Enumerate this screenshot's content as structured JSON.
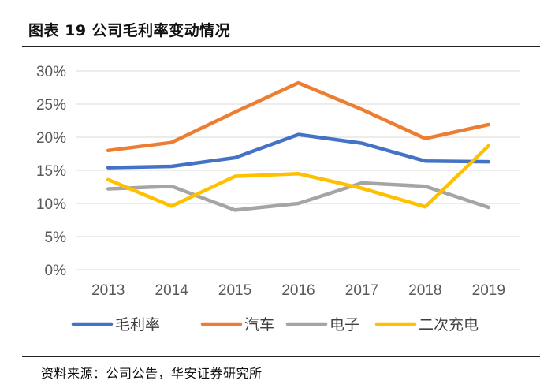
{
  "figure": {
    "title": "图表 19 公司毛利率变动情况",
    "source": "资料来源：公司公告，华安证券研究所"
  },
  "chart_data": {
    "type": "line",
    "categories": [
      "2013",
      "2014",
      "2015",
      "2016",
      "2017",
      "2018",
      "2019"
    ],
    "ylim": [
      0,
      30
    ],
    "yticks": [
      0,
      5,
      10,
      15,
      20,
      25,
      30
    ],
    "ytick_labels": [
      "0%",
      "5%",
      "10%",
      "15%",
      "20%",
      "25%",
      "30%"
    ],
    "grid": true,
    "legend_position": "bottom",
    "series": [
      {
        "name": "毛利率",
        "color": "#4472C4",
        "values": [
          15.4,
          15.6,
          16.9,
          20.4,
          19.1,
          16.4,
          16.3
        ]
      },
      {
        "name": "汽车",
        "color": "#ED7D31",
        "values": [
          18.0,
          19.2,
          23.8,
          28.2,
          24.2,
          19.8,
          21.9
        ]
      },
      {
        "name": "电子",
        "color": "#A5A5A5",
        "values": [
          12.2,
          12.6,
          9.0,
          10.0,
          13.1,
          12.6,
          9.4
        ]
      },
      {
        "name": "二次充电",
        "color": "#FFC000",
        "values": [
          13.6,
          9.6,
          14.1,
          14.5,
          12.3,
          9.5,
          18.7
        ]
      }
    ]
  }
}
